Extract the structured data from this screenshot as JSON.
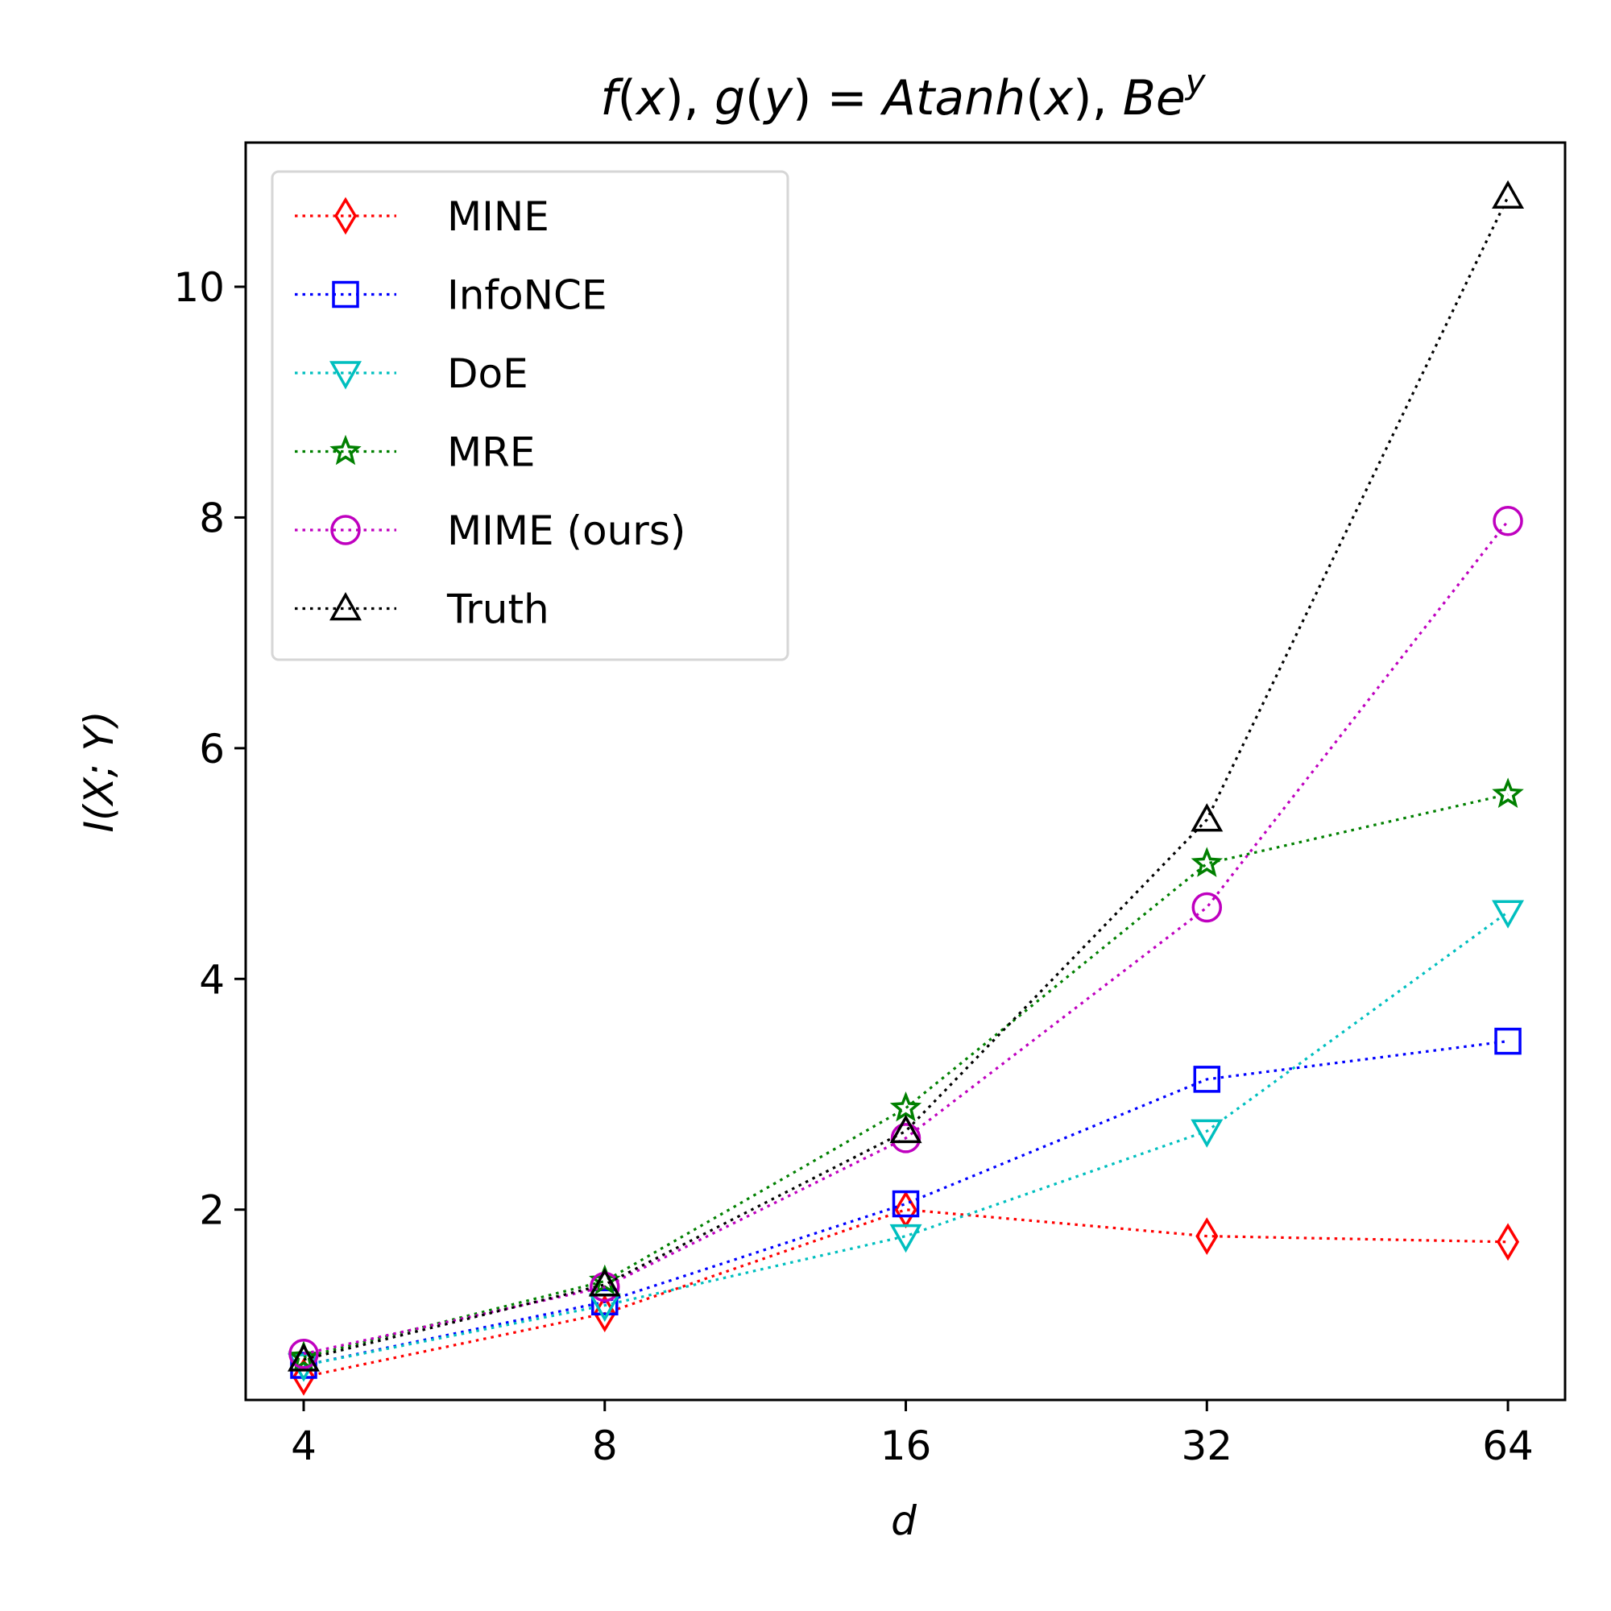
{
  "chart_data": {
    "type": "line",
    "title": {
      "parts": [
        {
          "text": "f",
          "italic": true
        },
        {
          "text": "(",
          "italic": false
        },
        {
          "text": "x",
          "italic": true
        },
        {
          "text": "), ",
          "italic": false
        },
        {
          "text": "g",
          "italic": true
        },
        {
          "text": "(",
          "italic": false
        },
        {
          "text": "y",
          "italic": true
        },
        {
          "text": ") = ",
          "italic": false
        },
        {
          "text": "Atanh",
          "italic": true
        },
        {
          "text": "(",
          "italic": false
        },
        {
          "text": "x",
          "italic": true
        },
        {
          "text": "), ",
          "italic": false
        },
        {
          "text": "Be",
          "italic": true
        }
      ],
      "superscript": "y"
    },
    "xlabel": "d",
    "ylabel": "I(X; Y)",
    "x_scale": "log2",
    "x": [
      4,
      8,
      16,
      32,
      64
    ],
    "x_ticks": [
      "4",
      "8",
      "16",
      "32",
      "64"
    ],
    "xlim": [
      3.5,
      73
    ],
    "ylim": [
      0.35,
      11.25
    ],
    "y_ticks": [
      2,
      4,
      6,
      8,
      10
    ],
    "grid": false,
    "legend_position": "top-left",
    "series": [
      {
        "name": "MINE",
        "color": "#ff0000",
        "marker": "thin-diamond",
        "values": [
          0.55,
          1.1,
          2.0,
          1.77,
          1.72
        ]
      },
      {
        "name": "InfoNCE",
        "color": "#0000ff",
        "marker": "square",
        "values": [
          0.65,
          1.2,
          2.05,
          3.13,
          3.46
        ]
      },
      {
        "name": "DoE",
        "color": "#00bfbf",
        "marker": "triangle-down",
        "values": [
          0.65,
          1.17,
          1.77,
          2.68,
          4.58
        ]
      },
      {
        "name": "MRE",
        "color": "#008000",
        "marker": "star",
        "values": [
          0.72,
          1.38,
          2.88,
          5.0,
          5.6
        ]
      },
      {
        "name": "MIME (ours)",
        "color": "#bf00bf",
        "marker": "circle",
        "values": [
          0.75,
          1.33,
          2.62,
          4.62,
          7.97
        ]
      },
      {
        "name": "Truth",
        "color": "#000000",
        "marker": "triangle-up",
        "values": [
          0.7,
          1.35,
          2.68,
          5.38,
          10.78
        ]
      }
    ]
  }
}
